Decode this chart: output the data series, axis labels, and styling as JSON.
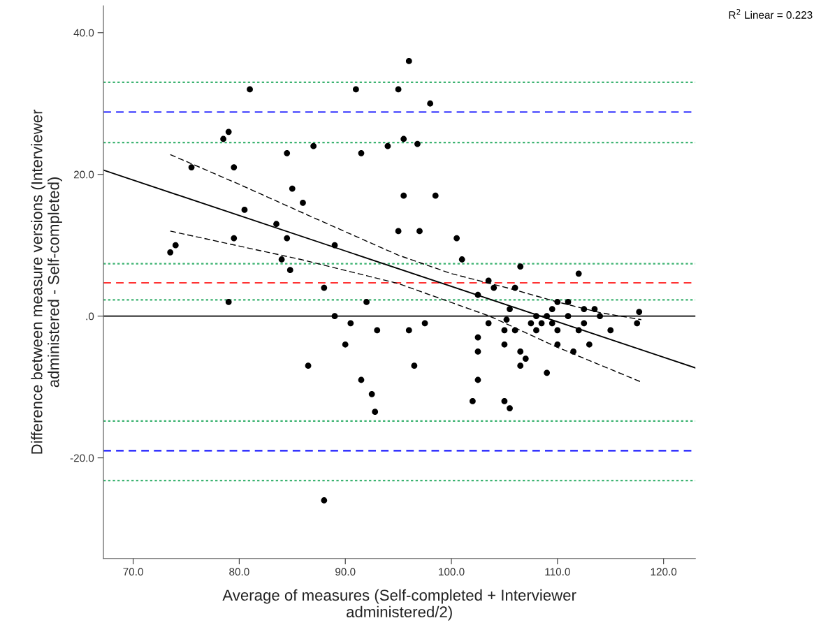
{
  "chart_data": {
    "type": "scatter",
    "xlabel": "Average of measures (Self-completed + Interviewer\nadministered/2)",
    "ylabel": "Difference between measure versions (Interviewer\nadministered - Self-completed)",
    "annotations": [
      "R$^{2}$ Linear = 0.223"
    ],
    "xlim": [
      67.2,
      123.0
    ],
    "ylim": [
      -34.2,
      43.8
    ],
    "xticks": [
      {
        "value": 70,
        "label": "70.0"
      },
      {
        "value": 80,
        "label": "80.0"
      },
      {
        "value": 90,
        "label": "90.0"
      },
      {
        "value": 100,
        "label": "100.0"
      },
      {
        "value": 110,
        "label": "110.0"
      },
      {
        "value": 120,
        "label": "120.0"
      }
    ],
    "yticks": [
      {
        "value": -20,
        "label": "-20.0"
      },
      {
        "value": 0,
        "label": ".0"
      },
      {
        "value": 20,
        "label": "20.0"
      },
      {
        "value": 40,
        "label": "40.0"
      }
    ],
    "grid": false,
    "legend": false,
    "series": [
      {
        "color": "#000000",
        "marker": "circle",
        "x": [
          73.5,
          74,
          75.5,
          78.5,
          79,
          79,
          79.5,
          79.5,
          80.5,
          81,
          83.5,
          84,
          84.5,
          84.5,
          85,
          84.8,
          86,
          87,
          86.5,
          88,
          88,
          89,
          89,
          90,
          90.5,
          91,
          91.5,
          91.5,
          92,
          92.5,
          93,
          92.8,
          94,
          95,
          95,
          95.5,
          95.5,
          96,
          96,
          96.5,
          96.8,
          97,
          97.5,
          98,
          98.5,
          100.5,
          101,
          102,
          102.5,
          102.5,
          102.5,
          102.5,
          103.5,
          103.5,
          104,
          105,
          105,
          105,
          105.2,
          105.5,
          105.5,
          106,
          106,
          106.5,
          106.5,
          106.5,
          107,
          107.5,
          108,
          108,
          108.5,
          109,
          109,
          109.5,
          109.5,
          110,
          110,
          110,
          111,
          111,
          111.5,
          112,
          112,
          112.5,
          112.5,
          113,
          113.5,
          114,
          115,
          117.5,
          117.7
        ],
        "values": [
          9,
          10,
          21,
          25,
          26,
          2,
          21,
          11,
          15,
          32,
          13,
          8,
          23,
          11,
          18,
          6.5,
          16,
          24,
          -7,
          4,
          -26,
          10,
          0,
          -4,
          -1,
          32,
          23,
          -9,
          2,
          -11,
          -2,
          -13.5,
          24,
          32,
          12,
          25,
          17,
          36,
          -2,
          -7,
          24.3,
          12,
          -1,
          30,
          17,
          11,
          8,
          -12,
          3,
          -3,
          -5,
          -9,
          5,
          -1,
          4,
          -12,
          -2,
          -4,
          -0.5,
          1,
          -13,
          4,
          -2,
          7,
          -5,
          -7,
          -6,
          -1,
          0,
          -2,
          -1,
          0,
          -8,
          1,
          -1,
          2,
          -2,
          -4,
          2,
          0,
          -5,
          6,
          -2,
          1,
          -1,
          -4,
          1,
          0,
          -2,
          -1,
          0.6
        ]
      },
      {
        "type": "line",
        "color": "#000000",
        "line_style": "solid",
        "marker": "none",
        "x": [
          67.2,
          123.0
        ],
        "values": [
          20.6,
          -7.3
        ]
      },
      {
        "type": "line",
        "color": "#000000",
        "line_style": "dashed",
        "marker": "none",
        "x": [
          73.5,
          80,
          86.4,
          95,
          100,
          105.5,
          110,
          114,
          117.9
        ],
        "values": [
          22.8,
          18.6,
          14.3,
          8.6,
          6.0,
          3.9,
          2.0,
          0.5,
          -0.5
        ]
      },
      {
        "type": "line",
        "color": "#000000",
        "line_style": "dashed",
        "marker": "none",
        "x": [
          73.5,
          85.8,
          95,
          103.6,
          110,
          117.9
        ],
        "values": [
          12.0,
          8.0,
          4.6,
          0,
          -4.4,
          -9.3
        ]
      }
    ],
    "ref_lines": [
      {
        "axis": "y",
        "value": 33.0,
        "color": "#3cb371",
        "line_style": "dotted"
      },
      {
        "axis": "y",
        "value": 28.8,
        "color": "#0000ff",
        "line_style": "dashed"
      },
      {
        "axis": "y",
        "value": 24.5,
        "color": "#3cb371",
        "line_style": "dotted"
      },
      {
        "axis": "y",
        "value": 7.4,
        "color": "#3cb371",
        "line_style": "dotted"
      },
      {
        "axis": "y",
        "value": 4.7,
        "color": "#ff3333",
        "line_style": "dashed"
      },
      {
        "axis": "y",
        "value": 2.3,
        "color": "#3cb371",
        "line_style": "dotted"
      },
      {
        "axis": "y",
        "value": 0,
        "color": "#000000",
        "line_style": "solid"
      },
      {
        "axis": "y",
        "value": -14.8,
        "color": "#3cb371",
        "line_style": "dotted"
      },
      {
        "axis": "y",
        "value": -19.0,
        "color": "#0000ff",
        "line_style": "dashed"
      },
      {
        "axis": "y",
        "value": -23.2,
        "color": "#3cb371",
        "line_style": "dotted"
      }
    ]
  }
}
